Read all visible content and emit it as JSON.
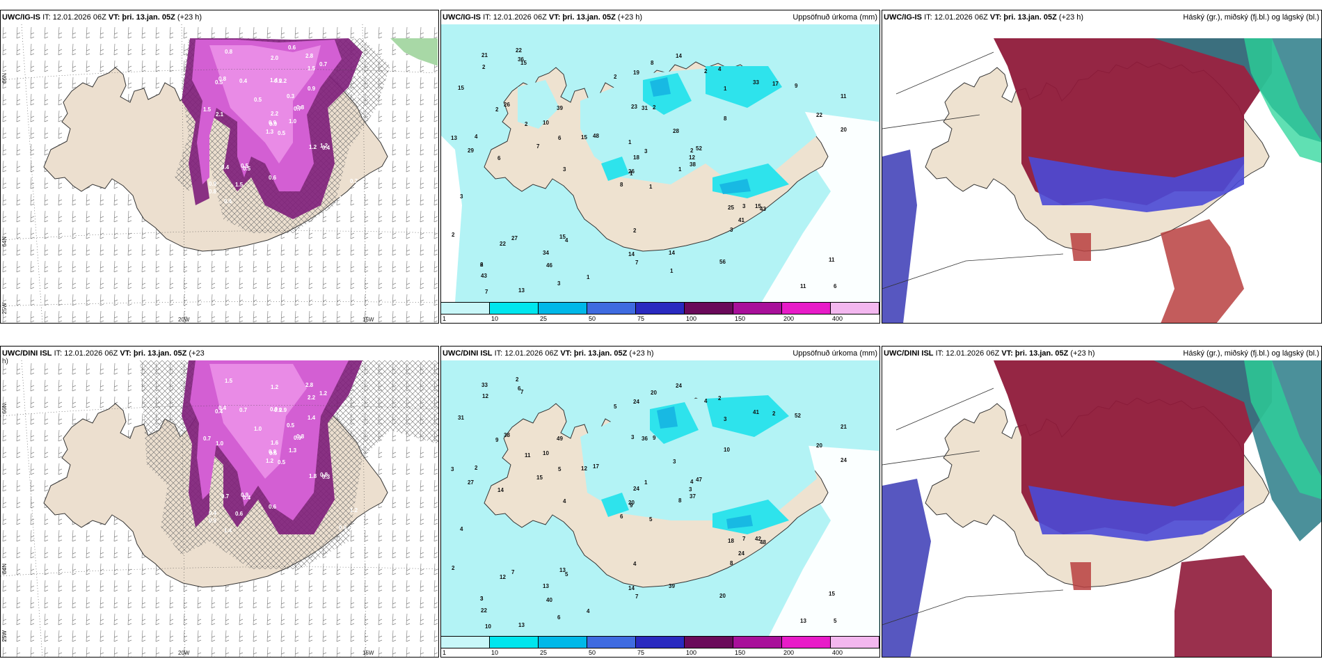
{
  "panels": [
    {
      "model": "UWC/IG-IS",
      "it": "IT: 12.01.2026 06Z",
      "vt": "VT: þri. 13.jan. 05Z",
      "lead": "(+23 h)",
      "title_right": ""
    },
    {
      "model": "UWC/IG-IS",
      "it": "IT: 12.01.2026 06Z",
      "vt": "VT: þri. 13.jan. 05Z",
      "lead": "(+23 h)",
      "title_right": "Uppsöfnuð úrkoma (mm)"
    },
    {
      "model": "UWC/IG-IS",
      "it": "IT: 12.01.2026 06Z",
      "vt": "VT: þri. 13.jan. 05Z",
      "lead": "(+23 h)",
      "title_right": "Háský (gr.), miðský (fj.bl.) og lágský (bl.)"
    },
    {
      "model": "UWC/DINI ISL",
      "it": "IT: 12.01.2026 06Z",
      "vt": "VT: þri. 13.jan. 05Z",
      "lead": "(+23",
      "title_right": ""
    },
    {
      "model": "UWC/DINI ISL",
      "it": "IT: 12.01.2026 06Z",
      "vt": "VT: þri. 13.jan. 05Z",
      "lead": "(+23 h)",
      "title_right": "Uppsöfnuð úrkoma (mm)"
    },
    {
      "model": "UWC/DINI ISL",
      "it": "IT: 12.01.2026 06Z",
      "vt": "VT: þri. 13.jan. 05Z",
      "lead": "(+23 h)",
      "title_right": "Háský (gr.), miðský (fj.bl.) og lágský (bl.)"
    }
  ],
  "overflow_lead": "h)",
  "grid_labels": {
    "lat66": "66N",
    "lat64": "64N",
    "lon25": "25W",
    "lon20": "20W",
    "lon15": "15W"
  },
  "colorbar": {
    "ticks": [
      "1",
      "10",
      "25",
      "50",
      "75",
      "100",
      "150",
      "200",
      "400"
    ],
    "colors": [
      "#c8f7f9",
      "#00e6ee",
      "#00b8e8",
      "#3f6be0",
      "#2a2ac0",
      "#6a0a5a",
      "#a8109a",
      "#e81cc8",
      "#f3b7ef"
    ]
  },
  "precip_top": [
    "1",
    "2",
    "1",
    "2",
    "2",
    "4",
    "4",
    "2",
    "1",
    "1",
    "15",
    "6",
    "6",
    "11",
    "8",
    "8",
    "13",
    "23",
    "28",
    "27",
    "48",
    "43",
    "46",
    "31",
    "52",
    "43",
    "26",
    "19",
    "29",
    "25",
    "20",
    "26",
    "14",
    "18",
    "39",
    "33",
    "15",
    "11",
    "11",
    "15",
    "14",
    "15",
    "7",
    "3",
    "3",
    "13",
    "12",
    "7",
    "7",
    "38",
    "22",
    "22",
    "15",
    "41",
    "56",
    "34",
    "36",
    "21",
    "14",
    "9",
    "8",
    "3",
    "4",
    "10",
    "17",
    "22",
    "2",
    "2",
    "3",
    "2",
    "2",
    "1",
    "3",
    "6",
    "6",
    "2",
    "2",
    "3",
    "1",
    "1"
  ],
  "precip_bottom": [
    "5",
    "9",
    "9",
    "3",
    "4",
    "5",
    "2",
    "9",
    "3",
    "8",
    "7",
    "5",
    "14",
    "21",
    "6",
    "10",
    "13",
    "3",
    "3",
    "7",
    "17",
    "22",
    "40",
    "36",
    "47",
    "48",
    "38",
    "24",
    "27",
    "18",
    "24",
    "20",
    "14",
    "24",
    "49",
    "41",
    "13",
    "13",
    "15",
    "42",
    "24",
    "12",
    "15",
    "8",
    "6",
    "3",
    "3",
    "10",
    "7",
    "37",
    "12",
    "20",
    "31",
    "24",
    "20",
    "13",
    "6",
    "33",
    "39",
    "52",
    "20",
    "4",
    "2",
    "10",
    "2",
    "2",
    "4",
    "5",
    "1",
    "2",
    "4",
    "4",
    "7",
    "5",
    "3",
    "12",
    "11",
    "4"
  ],
  "sh_top": [
    "0.5",
    "0.5",
    "0.9",
    "0.9",
    "0.7",
    "0.5",
    "2.8",
    "2.2",
    "1.5",
    "1.0",
    "0.8",
    "1.7",
    "2.1",
    "1.4",
    "1.3",
    "0.9",
    "0.4",
    "1.4",
    "0.3",
    "0.4",
    "0.5",
    "0.8",
    "1.5",
    "0.9",
    "0.8",
    "0.4",
    "0.8",
    "2.0",
    "1.5",
    "1.2",
    "0.7",
    "0.9",
    "0.6",
    "2.2",
    "0.4",
    "0.7",
    "0.5",
    "1.6",
    "0.7",
    "1.2",
    "0.6"
  ],
  "sh_bottom": [
    "0.5",
    "0.4",
    "0.5",
    "0.4",
    "0.9",
    "0.4",
    "2.8",
    "2.9",
    "2.2",
    "1.3",
    "1.5",
    "0.9",
    "1.0",
    "1.8",
    "1.2",
    "1.4",
    "1.4",
    "0.9",
    "0.5",
    "0.7",
    "1.0",
    "0.9",
    "0.6",
    "0.9",
    "0.8",
    "0.3",
    "0.4",
    "1.2",
    "0.7",
    "1.8",
    "1.5",
    "0.8",
    "0.6",
    "1.6",
    "0.7",
    "1.2",
    "0.9",
    "0.6",
    "1.2",
    "0.8"
  ]
}
